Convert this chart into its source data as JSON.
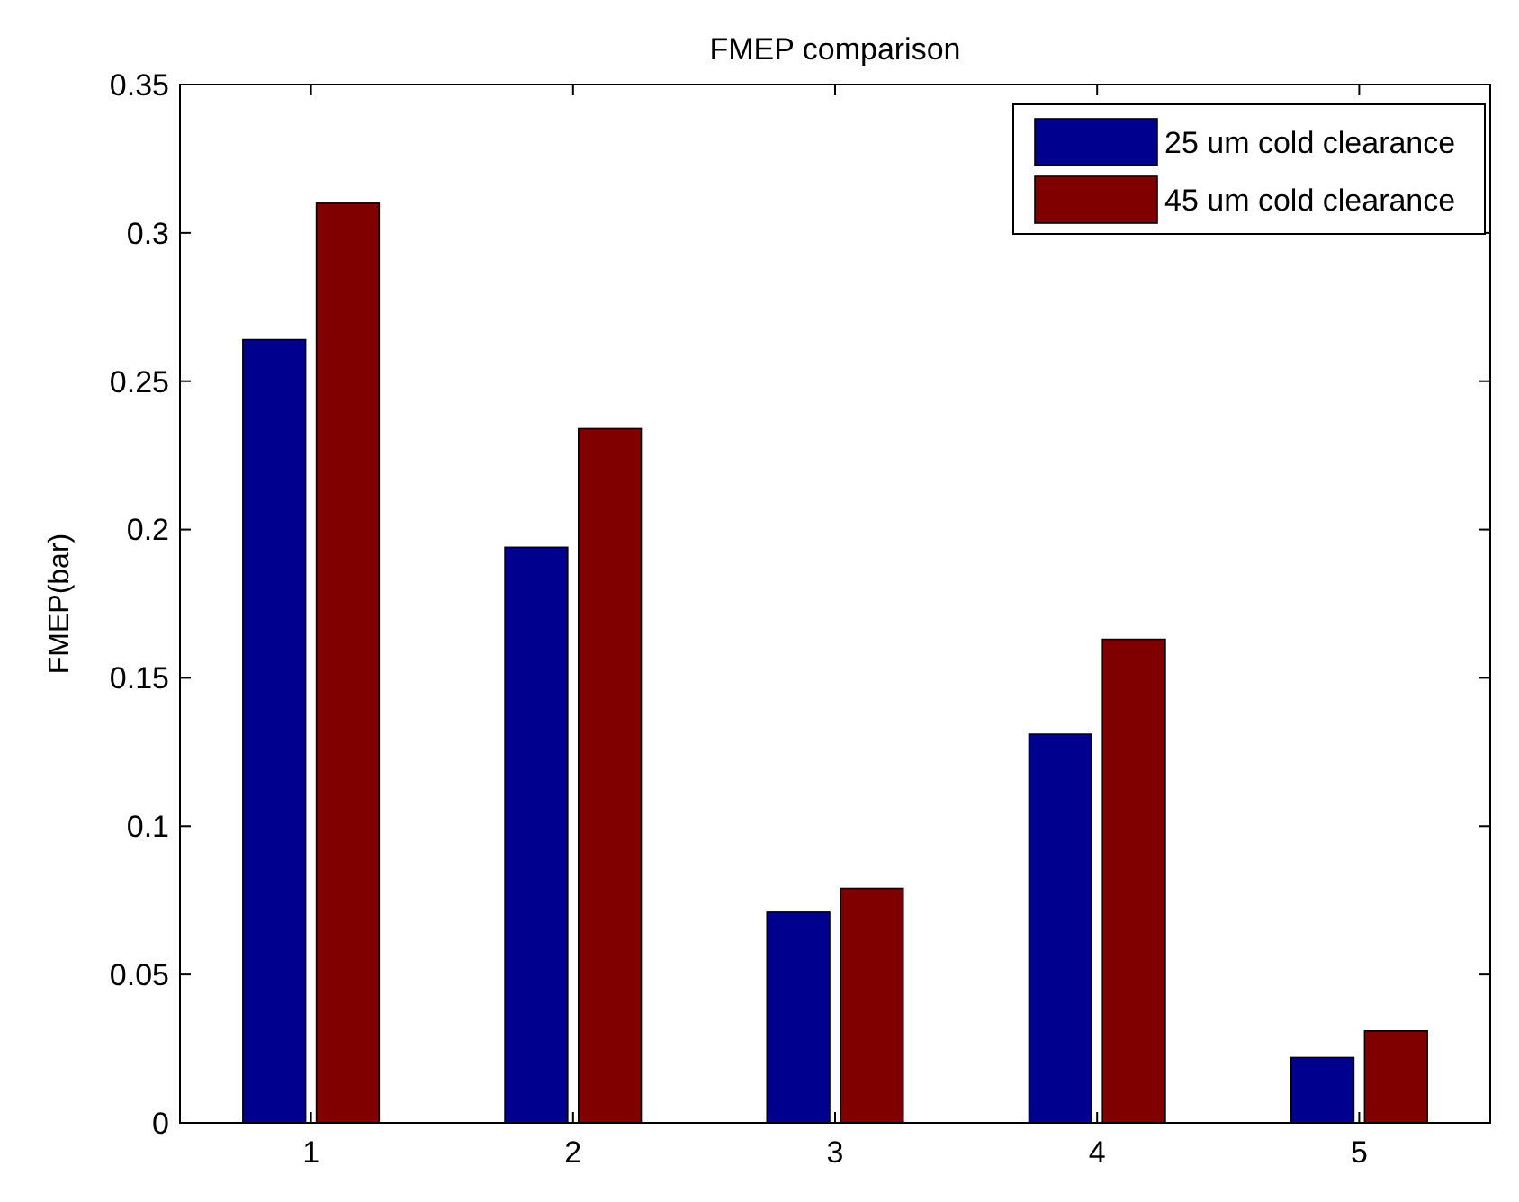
{
  "chart_data": {
    "type": "bar",
    "title": "FMEP comparison",
    "ylabel": "FMEP(bar)",
    "categories": [
      "1",
      "2",
      "3",
      "4",
      "5"
    ],
    "series": [
      {
        "name": "25 um cold clearance",
        "color": "#00008f",
        "values": [
          0.264,
          0.194,
          0.071,
          0.131,
          0.022
        ]
      },
      {
        "name": "45 um cold clearance",
        "color": "#800000",
        "values": [
          0.31,
          0.234,
          0.079,
          0.163,
          0.031
        ]
      }
    ],
    "ylim": [
      0,
      0.35
    ],
    "yticks": [
      0,
      0.05,
      0.1,
      0.15,
      0.2,
      0.25,
      0.3,
      0.35
    ],
    "legend": "top right",
    "grid": false
  }
}
